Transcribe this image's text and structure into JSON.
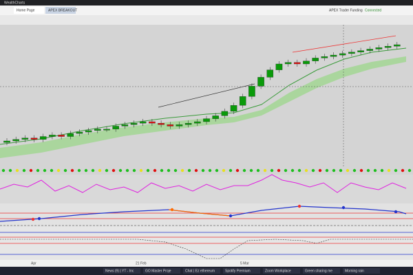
{
  "browser": {
    "tab": "WealthCharts"
  },
  "app": {
    "tabs": [
      "Home Page",
      "APEX BREAKOUT"
    ],
    "status": [
      "APEX Trader Funding",
      "Connected"
    ]
  },
  "chart": {
    "closes": [
      100,
      101,
      102,
      101,
      103,
      104,
      103,
      105,
      106,
      107,
      108,
      108,
      110,
      111,
      112,
      113,
      112,
      111,
      110,
      111,
      112,
      113,
      115,
      117,
      120,
      124,
      130,
      137,
      143,
      148,
      152,
      153,
      152,
      154,
      156,
      157,
      158,
      159,
      160,
      161,
      162,
      163,
      164,
      165
    ],
    "dates": [
      "Apr",
      "21 Feb",
      "5 Mar"
    ]
  },
  "taskbar": [
    "News (9) | YT - Inc",
    "GO Master Proje",
    "Chat | Ez ethereum",
    "Spotify Premium",
    "Zoom Workplace",
    "Green sharing me",
    "Morning rain"
  ]
}
